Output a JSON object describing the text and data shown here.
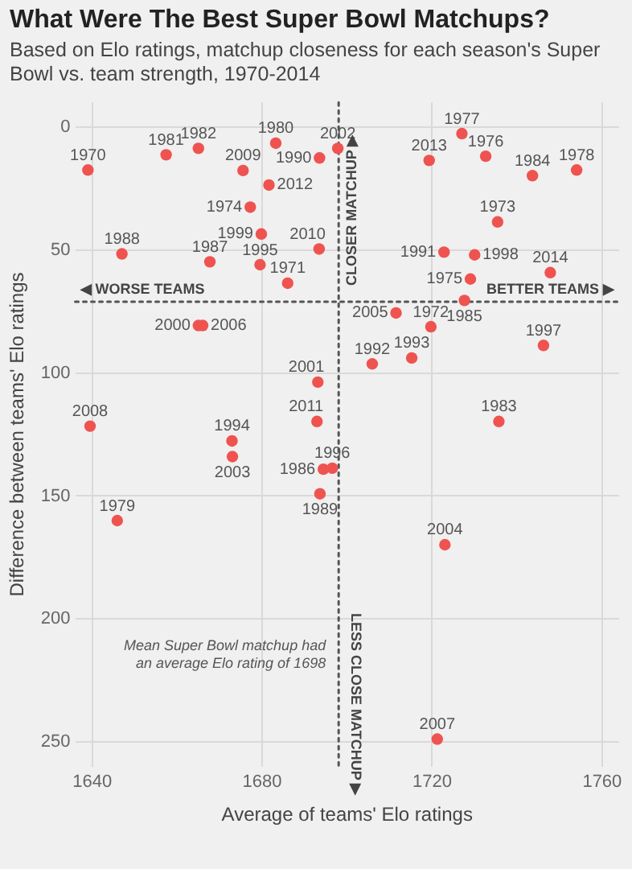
{
  "chart_data": {
    "type": "scatter",
    "title": "What Were The Best Super Bowl Matchups?",
    "subtitle": "Based on Elo ratings, matchup closeness for each season's Super Bowl vs. team strength, 1970-2014",
    "xlabel": "Average of teams' Elo ratings",
    "ylabel": "Difference between teams' Elo ratings",
    "xlim": [
      1636,
      1764
    ],
    "xticks": [
      1640,
      1680,
      1720,
      1760
    ],
    "ylim": [
      260,
      -10
    ],
    "yticks": [
      0,
      50,
      100,
      150,
      200,
      250
    ],
    "grid": true,
    "legend": false,
    "marker": "circle",
    "series": [
      {
        "color": "#ef5350",
        "x": [
          1639,
          1657.4,
          1665,
          1683.2,
          1693.5,
          1697.8,
          1675.5,
          1681.6,
          1677.2,
          1679.8,
          1693.4,
          1647,
          1667.7,
          1679.5,
          1686,
          1665,
          1666,
          1719.3,
          1727,
          1732.6,
          1743.6,
          1754,
          1735.4,
          1722.8,
          1730,
          1747.8,
          1729,
          1727.6,
          1711.5,
          1719.7,
          1746.2,
          1705.9,
          1715.2,
          1735.7,
          1696.5,
          1723,
          1693.1,
          1692.9,
          1639.5,
          1672.9,
          1673,
          1694.4,
          1693.6,
          1645.9,
          1721.2
        ],
        "values": [
          17.5,
          11.3,
          8.7,
          6.6,
          12.6,
          8.7,
          17.7,
          23.6,
          32.6,
          43.5,
          49.6,
          51.6,
          54.8,
          56,
          63.5,
          80.7,
          80.7,
          13.6,
          2.7,
          11.9,
          19.8,
          17.5,
          38.6,
          50.9,
          52,
          59.2,
          61.8,
          70.5,
          75.6,
          81.2,
          88.8,
          96.3,
          93.9,
          119.7,
          138.7,
          169.8,
          103.7,
          119.7,
          121.6,
          127.6,
          134,
          139.1,
          149.1,
          160,
          248.8
        ]
      }
    ],
    "ref_lines": [
      {
        "axis": "x",
        "value": 1698,
        "label": "Mean Super Bowl matchup had an average Elo rating of 1698",
        "line_style": "dotted",
        "color": "#555555"
      },
      {
        "axis": "y",
        "value": 71,
        "line_style": "dotted",
        "color": "#555555"
      }
    ],
    "annotations": [
      "◀ WORSE TEAMS",
      "BETTER TEAMS ▶",
      "CLOSER MATCHUP ▶",
      "LESS CLOSE MATCHUP ▶",
      {
        "text": "1970",
        "x": 1639,
        "y": 17.5
      },
      {
        "text": "1981",
        "x": 1657.4,
        "y": 11.3
      },
      {
        "text": "1982",
        "x": 1665,
        "y": 8.7
      },
      {
        "text": "1980",
        "x": 1683.2,
        "y": 6.6
      },
      {
        "text": "1990",
        "x": 1693.5,
        "y": 12.6
      },
      {
        "text": "2002",
        "x": 1697.8,
        "y": 8.7
      },
      {
        "text": "2009",
        "x": 1675.5,
        "y": 17.7
      },
      {
        "text": "2012",
        "x": 1681.6,
        "y": 23.6
      },
      {
        "text": "1974",
        "x": 1677.2,
        "y": 32.6
      },
      {
        "text": "1999",
        "x": 1679.8,
        "y": 43.5
      },
      {
        "text": "2010",
        "x": 1693.4,
        "y": 49.6
      },
      {
        "text": "1988",
        "x": 1647,
        "y": 51.6
      },
      {
        "text": "1987",
        "x": 1667.7,
        "y": 54.8
      },
      {
        "text": "1995",
        "x": 1679.5,
        "y": 56
      },
      {
        "text": "1971",
        "x": 1686,
        "y": 63.5
      },
      {
        "text": "2000",
        "x": 1665,
        "y": 80.7
      },
      {
        "text": "2006",
        "x": 1666,
        "y": 80.7
      },
      {
        "text": "2013",
        "x": 1719.3,
        "y": 13.6
      },
      {
        "text": "1977",
        "x": 1727,
        "y": 2.7
      },
      {
        "text": "1976",
        "x": 1732.6,
        "y": 11.9
      },
      {
        "text": "1984",
        "x": 1743.6,
        "y": 19.8
      },
      {
        "text": "1978",
        "x": 1754,
        "y": 17.5
      },
      {
        "text": "1973",
        "x": 1735.4,
        "y": 38.6
      },
      {
        "text": "1991",
        "x": 1722.8,
        "y": 50.9
      },
      {
        "text": "1998",
        "x": 1730,
        "y": 52
      },
      {
        "text": "2014",
        "x": 1747.8,
        "y": 59.2
      },
      {
        "text": "1975",
        "x": 1729,
        "y": 61.8
      },
      {
        "text": "1985",
        "x": 1727.6,
        "y": 70.5
      },
      {
        "text": "2005",
        "x": 1711.5,
        "y": 75.6
      },
      {
        "text": "1972",
        "x": 1719.7,
        "y": 81.2
      },
      {
        "text": "1997",
        "x": 1746.2,
        "y": 88.8
      },
      {
        "text": "1992",
        "x": 1705.9,
        "y": 96.3
      },
      {
        "text": "1993",
        "x": 1715.2,
        "y": 93.9
      },
      {
        "text": "1983",
        "x": 1735.7,
        "y": 119.7
      },
      {
        "text": "1996",
        "x": 1696.5,
        "y": 138.7
      },
      {
        "text": "2004",
        "x": 1723,
        "y": 169.8
      },
      {
        "text": "2001",
        "x": 1693.1,
        "y": 103.7
      },
      {
        "text": "2011",
        "x": 1692.9,
        "y": 119.7
      },
      {
        "text": "2008",
        "x": 1639.5,
        "y": 121.6
      },
      {
        "text": "1994",
        "x": 1672.9,
        "y": 127.6
      },
      {
        "text": "2003",
        "x": 1673,
        "y": 134
      },
      {
        "text": "1986",
        "x": 1694.4,
        "y": 139.1
      },
      {
        "text": "1989",
        "x": 1693.6,
        "y": 149.1
      },
      {
        "text": "1979",
        "x": 1645.9,
        "y": 160
      },
      {
        "text": "2007",
        "x": 1721.2,
        "y": 248.8
      }
    ]
  }
}
